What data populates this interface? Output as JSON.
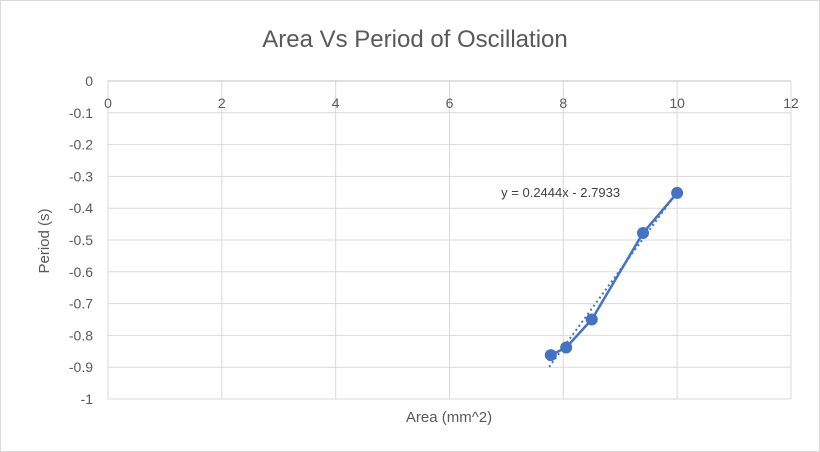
{
  "chart_data": {
    "type": "scatter",
    "title": "Area Vs Period of Oscillation",
    "xlabel": "Area (mm^2)",
    "ylabel": "Period (s)",
    "xlim": [
      0,
      12
    ],
    "ylim": [
      -1,
      0
    ],
    "x_ticks": [
      "0",
      "2",
      "4",
      "6",
      "8",
      "10",
      "12"
    ],
    "y_ticks": [
      "0",
      "-0.1",
      "-0.2",
      "-0.3",
      "-0.4",
      "-0.5",
      "-0.6",
      "-0.7",
      "-0.8",
      "-0.9",
      "-1"
    ],
    "x_tick_values": [
      0,
      2,
      4,
      6,
      8,
      10,
      12
    ],
    "y_tick_values": [
      0,
      -0.1,
      -0.2,
      -0.3,
      -0.4,
      -0.5,
      -0.6,
      -0.7,
      -0.8,
      -0.9,
      -1
    ],
    "grid": true,
    "series": [
      {
        "x": [
          7.78,
          8.05,
          8.5,
          9.4,
          10.0
        ],
        "y": [
          -0.862,
          -0.838,
          -0.75,
          -0.478,
          -0.352
        ],
        "color": "#4472c4",
        "markers": true,
        "line": true
      }
    ],
    "trendline": {
      "type": "linear",
      "slope": 0.2444,
      "intercept": -2.7933,
      "x_range": [
        7.78,
        10.0
      ],
      "style": "dotted",
      "color": "#4472c4",
      "equation": "y = 0.2444x - 2.7933"
    }
  }
}
